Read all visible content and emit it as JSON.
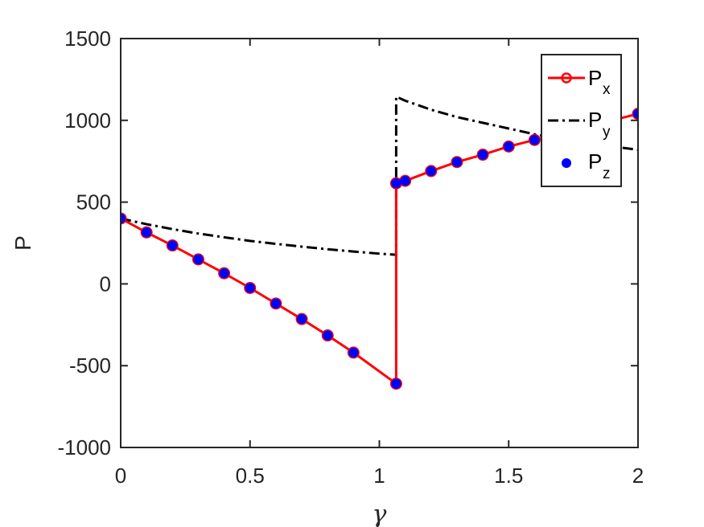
{
  "chart_data": {
    "type": "line",
    "xlabel": "γ",
    "ylabel": "P",
    "xlim": [
      0,
      2
    ],
    "ylim": [
      -1000,
      1500
    ],
    "xticks": [
      "0",
      "0.5",
      "1",
      "1.5",
      "2"
    ],
    "yticks": [
      "-1000",
      "-500",
      "0",
      "500",
      "1000",
      "1500"
    ],
    "grid": false,
    "legend_position": "top-right",
    "colors": {
      "px": "#ff0000",
      "py": "#000000",
      "pz": "#0000ff"
    },
    "series": [
      {
        "name": "P",
        "subscript": "x",
        "style": "solid-circle-markers",
        "x": [
          0,
          0.1,
          0.2,
          0.3,
          0.4,
          0.5,
          0.6,
          0.7,
          0.8,
          0.9,
          1.065,
          1.065,
          1.1,
          1.2,
          1.3,
          1.4,
          1.5,
          1.6,
          1.7,
          1.8,
          1.9,
          2.0
        ],
        "y": [
          400,
          315,
          235,
          150,
          65,
          -25,
          -120,
          -215,
          -315,
          -420,
          -610,
          615,
          630,
          690,
          745,
          790,
          840,
          880,
          920,
          960,
          1000,
          1040
        ],
        "markers_at": [
          0,
          1,
          2,
          3,
          4,
          5,
          6,
          7,
          8,
          9,
          10,
          11,
          12,
          13,
          14,
          15,
          16,
          17,
          21
        ]
      },
      {
        "name": "P",
        "subscript": "y",
        "style": "dash-dot",
        "x": [
          0,
          0.1,
          0.2,
          0.3,
          0.4,
          0.5,
          0.6,
          0.7,
          0.8,
          0.9,
          1.0,
          1.065,
          1.065,
          1.1,
          1.2,
          1.3,
          1.4,
          1.5,
          1.6,
          1.7,
          1.8,
          1.9,
          2.0
        ],
        "y": [
          400,
          365,
          335,
          308,
          285,
          263,
          245,
          228,
          212,
          198,
          185,
          178,
          1145,
          1120,
          1065,
          1020,
          985,
          950,
          915,
          885,
          860,
          840,
          820
        ]
      },
      {
        "name": "P",
        "subscript": "z",
        "style": "dots",
        "x": [
          0,
          0.1,
          0.2,
          0.3,
          0.4,
          0.5,
          0.6,
          0.7,
          0.8,
          0.9,
          1.065,
          1.065,
          1.1,
          1.2,
          1.3,
          1.4,
          1.5,
          1.6,
          2.0
        ],
        "y": [
          400,
          315,
          235,
          150,
          65,
          -25,
          -120,
          -215,
          -315,
          -420,
          -610,
          615,
          630,
          690,
          745,
          790,
          840,
          880,
          1040
        ]
      }
    ]
  }
}
